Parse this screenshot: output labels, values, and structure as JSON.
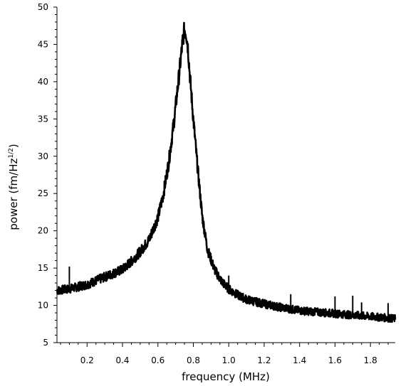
{
  "chart_data": {
    "type": "line",
    "xlabel": "frequency (MHz)",
    "ylabel_main": "power  (fm/Hz",
    "ylabel_sup": "1/2",
    "ylabel_close": ")",
    "xlim": [
      0.03,
      1.94
    ],
    "ylim": [
      5,
      50
    ],
    "x_ticks": [
      0.2,
      0.4,
      0.6,
      0.8,
      1.0,
      1.2,
      1.4,
      1.6,
      1.8
    ],
    "x_tick_labels": [
      "0.2",
      "0.4",
      "0.6",
      "0.8",
      "1.0",
      "1.2",
      "1.4",
      "1.6",
      "1.8"
    ],
    "y_ticks": [
      5,
      10,
      15,
      20,
      25,
      30,
      35,
      40,
      45,
      50
    ],
    "y_tick_labels": [
      "5",
      "10",
      "15",
      "20",
      "25",
      "30",
      "35",
      "40",
      "45",
      "50"
    ],
    "grid": false,
    "series": [
      {
        "x": [
          0.03,
          0.1,
          0.2,
          0.3,
          0.4,
          0.45,
          0.5,
          0.55,
          0.6,
          0.63,
          0.66,
          0.69,
          0.72,
          0.74,
          0.75,
          0.76,
          0.77,
          0.78,
          0.8,
          0.82,
          0.85,
          0.88,
          0.92,
          0.96,
          1.0,
          1.05,
          1.1,
          1.2,
          1.3,
          1.4,
          1.5,
          1.6,
          1.7,
          1.8,
          1.9,
          1.94
        ],
        "y": [
          12.0,
          12.2,
          12.8,
          13.8,
          14.8,
          15.9,
          17.2,
          18.8,
          21.8,
          24.8,
          29.0,
          34.5,
          41.0,
          45.5,
          47.0,
          46.5,
          44.5,
          41.0,
          35.0,
          29.5,
          22.0,
          17.5,
          14.8,
          13.2,
          12.2,
          11.4,
          10.8,
          10.2,
          9.7,
          9.3,
          9.1,
          8.9,
          8.7,
          8.5,
          8.3,
          8.2
        ]
      }
    ],
    "spikes": [
      {
        "x": 0.1,
        "y": 15.2
      },
      {
        "x": 1.0,
        "y": 14.0
      },
      {
        "x": 1.35,
        "y": 11.5
      },
      {
        "x": 1.6,
        "y": 11.2
      },
      {
        "x": 1.7,
        "y": 11.3
      },
      {
        "x": 1.75,
        "y": 10.4
      },
      {
        "x": 1.9,
        "y": 10.3
      }
    ]
  }
}
